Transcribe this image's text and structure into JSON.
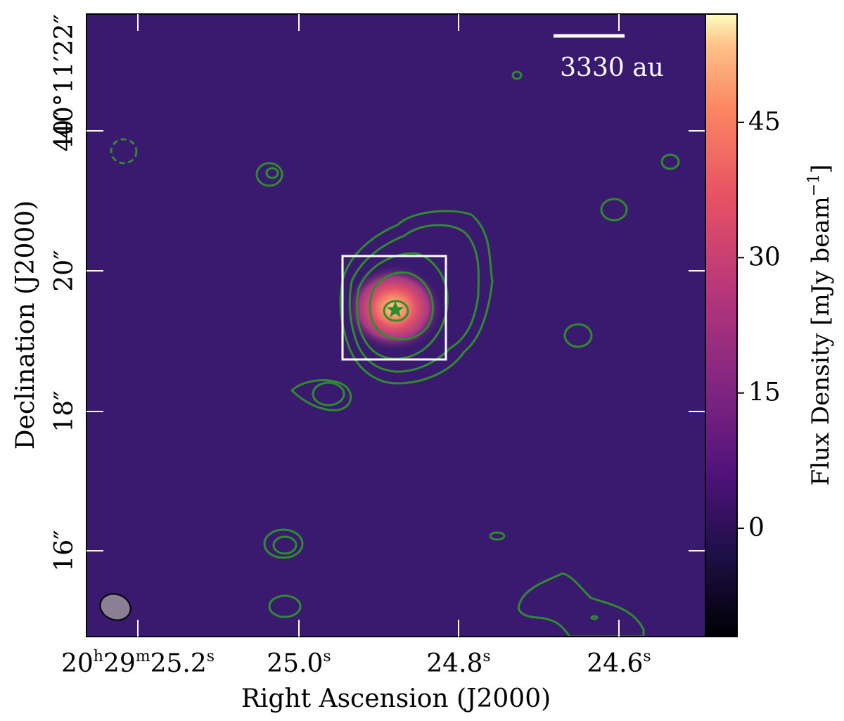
{
  "figure": {
    "xlabel": "Right Ascension (J2000)",
    "ylabel": "Declination (J2000)",
    "colorbar_label": "Flux Density [mJy beam",
    "colorbar_label_sup": "−1",
    "colorbar_label_end": "]",
    "colorbar_ticks": [
      "45",
      "30",
      "15",
      "0"
    ],
    "colorbar_values": [
      45,
      30,
      15,
      0
    ],
    "colorbar_range": [
      -12,
      57
    ],
    "scalebar_label": "3330 au",
    "ra_ticks": [
      {
        "main": "20",
        "h": "h",
        "m_val": "29",
        "m": "m",
        "s_val": "25.2",
        "s": "s"
      },
      {
        "s_val": "25.0",
        "s": "s"
      },
      {
        "s_val": "24.8",
        "s": "s"
      },
      {
        "s_val": "24.6",
        "s": "s"
      }
    ],
    "dec_ticks": [
      "40°11′22″",
      "40″",
      "20″",
      "18″",
      "16″"
    ],
    "colors": {
      "background": "#3a1a6e",
      "contour": "#2e8b2e",
      "box": "#ffffff",
      "beam": "#8a7f93"
    }
  }
}
